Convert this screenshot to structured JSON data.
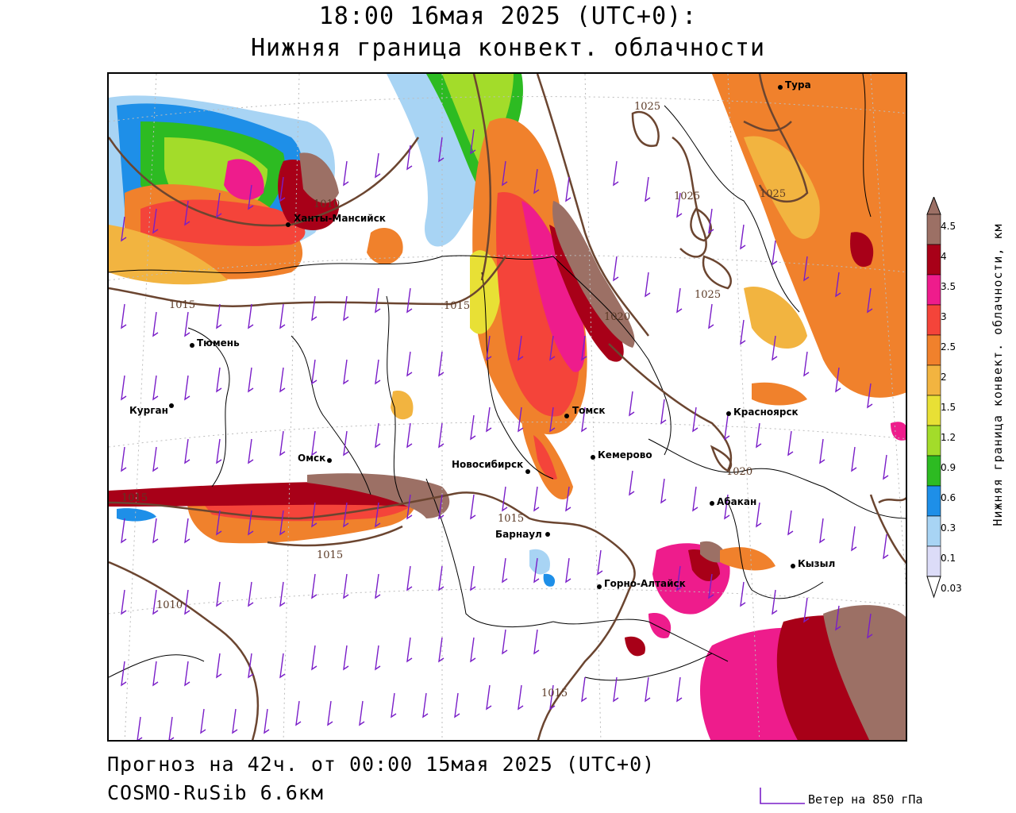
{
  "header": {
    "title_line1": "18:00 16мая 2025 (UTC+0):",
    "title_line2": "Нижняя граница конвект. облачности"
  },
  "footer": {
    "forecast": "Прогноз на 42ч. от 00:00 15мая 2025 (UTC+0)",
    "model": "COSMO-RuSib 6.6км",
    "wind_legend": "Ветер на 850 гПа"
  },
  "colorbar": {
    "title": "Нижняя граница конвект. облачности, км",
    "levels": [
      {
        "label": "4.5",
        "color": "#9c7065"
      },
      {
        "label": "4",
        "color": "#a80018"
      },
      {
        "label": "3.5",
        "color": "#ee1c8c"
      },
      {
        "label": "3",
        "color": "#f4443a"
      },
      {
        "label": "2.5",
        "color": "#f0812c"
      },
      {
        "label": "2",
        "color": "#f2b440"
      },
      {
        "label": "1.5",
        "color": "#e8e035"
      },
      {
        "label": "1.2",
        "color": "#a3dc2a"
      },
      {
        "label": "0.9",
        "color": "#2dbb22"
      },
      {
        "label": "0.6",
        "color": "#1e8fe8"
      },
      {
        "label": "0.3",
        "color": "#a8d4f4"
      },
      {
        "label": "0.1",
        "color": "#dcdcf8"
      },
      {
        "label": "0.03",
        "color": "#ffffff"
      }
    ]
  },
  "map": {
    "cities": [
      {
        "name": "Тура"
      },
      {
        "name": "Ханты-Мансийск"
      },
      {
        "name": "Тюмень"
      },
      {
        "name": "Курган"
      },
      {
        "name": "Омск"
      },
      {
        "name": "Новосибирск"
      },
      {
        "name": "Томск"
      },
      {
        "name": "Кемерово"
      },
      {
        "name": "Красноярск"
      },
      {
        "name": "Абакан"
      },
      {
        "name": "Барнаул"
      },
      {
        "name": "Горно-Алтайск"
      },
      {
        "name": "Кызыл"
      }
    ],
    "isobar_labels": [
      "1025",
      "1025",
      "1025",
      "1025",
      "1010",
      "1015",
      "1015",
      "1020",
      "1020",
      "1015",
      "1015",
      "1015",
      "1010",
      "1015"
    ],
    "colors": {
      "isobar": "#6b4530",
      "wind_barb": "#7a1ec8",
      "border": "#000000"
    }
  }
}
